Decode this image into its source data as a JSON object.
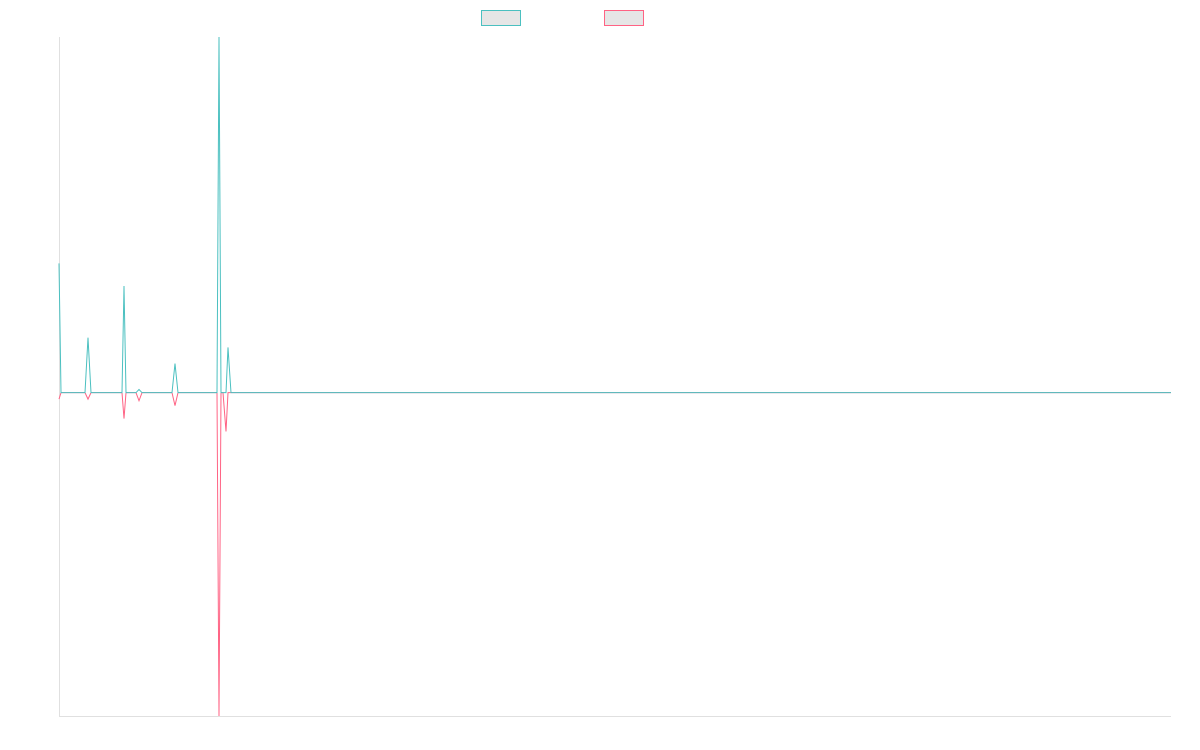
{
  "chart_data": {
    "type": "line",
    "x": [
      0,
      0.5,
      6.5,
      7.25,
      8,
      15.75,
      16.25,
      16.75,
      19.25,
      20,
      20.75,
      28.25,
      29,
      29.75,
      39.5,
      40,
      40.5,
      41,
      41.75,
      42.25,
      43,
      278
    ],
    "series": [
      {
        "color": "#ff6384",
        "values": [
          -0.02,
          0,
          0,
          -0.02,
          0,
          0,
          -0.08,
          0,
          0,
          -0.025,
          0,
          0,
          -0.04,
          0,
          0,
          -1,
          0,
          0,
          -0.12,
          0,
          0,
          0
        ]
      },
      {
        "color": "#4bc0c0",
        "values": [
          0.4,
          0,
          0,
          0.17,
          0,
          0,
          0.33,
          0,
          0,
          0.01,
          0,
          0,
          0.09,
          0,
          0,
          1.1,
          0,
          0,
          0,
          0.14,
          0,
          0
        ]
      }
    ],
    "xlim": [
      0,
      278
    ],
    "ylim": [
      -1,
      1.1
    ],
    "legend": "top",
    "grid": false
  }
}
